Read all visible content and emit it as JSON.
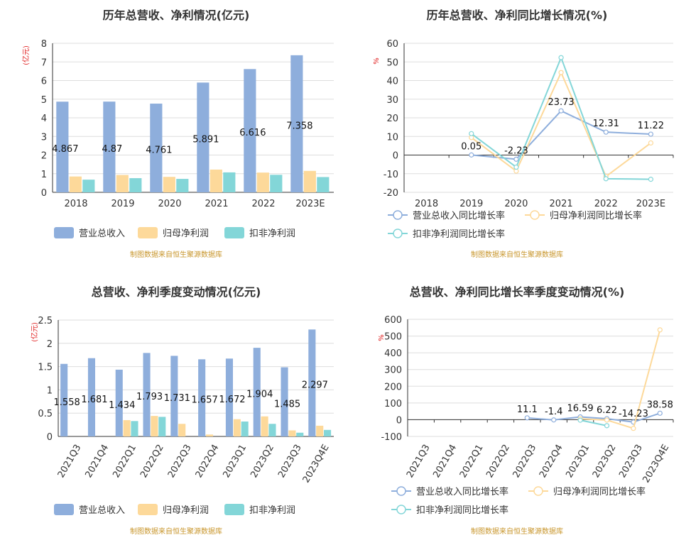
{
  "chart_data": [
    {
      "type": "bar",
      "title": "历年总营收、净利情况(亿元)",
      "ylabel": "(亿元)",
      "ylim": [
        0,
        8
      ],
      "yticks": [
        0,
        1,
        2,
        3,
        4,
        5,
        6,
        7,
        8
      ],
      "categories": [
        "2018",
        "2019",
        "2020",
        "2021",
        "2022",
        "2023E"
      ],
      "series": [
        {
          "name": "营业总收入",
          "values": [
            4.867,
            4.87,
            4.761,
            5.891,
            6.616,
            7.358
          ]
        },
        {
          "name": "归母净利润",
          "values": [
            0.85,
            0.93,
            0.83,
            1.22,
            1.06,
            1.15
          ]
        },
        {
          "name": "扣非净利润",
          "values": [
            0.68,
            0.76,
            0.72,
            1.07,
            0.94,
            0.82
          ]
        }
      ],
      "data_labels": [
        "4.867",
        "4.87",
        "4.761",
        "5.891",
        "6.616",
        "7.358"
      ],
      "source": "制图数据来自恒生聚源数据库"
    },
    {
      "type": "line",
      "title": "历年总营收、净利同比增长情况(%)",
      "ylabel": "%",
      "ylim": [
        -20,
        60
      ],
      "yticks": [
        -20,
        -10,
        0,
        10,
        20,
        30,
        40,
        50,
        60
      ],
      "categories": [
        "2018",
        "2019",
        "2020",
        "2021",
        "2022",
        "2023E"
      ],
      "series": [
        {
          "name": "营业总收入同比增长率",
          "values": [
            null,
            0.05,
            -2.23,
            23.73,
            12.31,
            11.22
          ]
        },
        {
          "name": "归母净利润同比增长率",
          "values": [
            null,
            9.4,
            -8.6,
            44.3,
            -11.5,
            6.5
          ]
        },
        {
          "name": "扣非净利润同比增长率",
          "values": [
            null,
            11.5,
            -6.5,
            52.3,
            -12.7,
            -13.0
          ]
        }
      ],
      "data_labels": [
        "",
        "0.05",
        "-2.23",
        "23.73",
        "12.31",
        "11.22"
      ],
      "source": "制图数据来自恒生聚源数据库"
    },
    {
      "type": "bar",
      "title": "总营收、净利季度变动情况(亿元)",
      "ylabel": "(亿元)",
      "ylim": [
        0,
        2.5
      ],
      "yticks": [
        0,
        0.5,
        1,
        1.5,
        2,
        2.5
      ],
      "ytick_labels": [
        "0",
        "0.5",
        "1",
        "1.5",
        "2",
        "2.5"
      ],
      "categories": [
        "2021Q3",
        "2021Q4",
        "2022Q1",
        "2022Q2",
        "2022Q3",
        "2022Q4",
        "2023Q1",
        "2023Q2",
        "2023Q3",
        "2023Q4E"
      ],
      "series": [
        {
          "name": "营业总收入",
          "values": [
            1.558,
            1.681,
            1.434,
            1.793,
            1.731,
            1.657,
            1.672,
            1.904,
            1.485,
            2.297
          ]
        },
        {
          "name": "归母净利润",
          "values": [
            null,
            null,
            0.35,
            0.44,
            0.27,
            0.04,
            0.37,
            0.43,
            0.13,
            0.23
          ]
        },
        {
          "name": "扣非净利润",
          "values": [
            null,
            null,
            0.33,
            0.42,
            null,
            null,
            0.32,
            0.27,
            0.08,
            0.14
          ]
        }
      ],
      "data_labels": [
        "1.558",
        "1.681",
        "1.434",
        "1.793",
        "1.731",
        "1.657",
        "1.672",
        "1.904",
        "1.485",
        "2.297"
      ],
      "source": "制图数据来自恒生聚源数据库"
    },
    {
      "type": "line",
      "title": "总营收、净利同比增长率季度变动情况(%)",
      "ylabel": "%",
      "ylim": [
        -100,
        600
      ],
      "yticks": [
        -100,
        0,
        100,
        200,
        300,
        400,
        500,
        600
      ],
      "categories": [
        "2021Q3",
        "2021Q4",
        "2022Q1",
        "2022Q2",
        "2022Q3",
        "2022Q4",
        "2023Q1",
        "2023Q2",
        "2023Q3",
        "2023Q4E"
      ],
      "series": [
        {
          "name": "营业总收入同比增长率",
          "values": [
            null,
            null,
            null,
            null,
            11.1,
            -1.4,
            16.59,
            6.22,
            -14.23,
            38.58
          ]
        },
        {
          "name": "归母净利润同比增长率",
          "values": [
            null,
            null,
            null,
            null,
            null,
            null,
            5.7,
            -2.3,
            -51.9,
            537.0
          ]
        },
        {
          "name": "扣非净利润同比增长率",
          "values": [
            null,
            null,
            null,
            null,
            null,
            null,
            -3.0,
            -35.7,
            null,
            null
          ]
        }
      ],
      "data_labels": [
        "",
        "",
        "",
        "",
        "11.1",
        "-1.4",
        "16.59",
        "6.22",
        "-14.23",
        "38.58"
      ],
      "source": "制图数据来自恒生聚源数据库"
    }
  ],
  "colors": {
    "series": [
      "#8eaedc",
      "#fdd99a",
      "#83d6d8"
    ],
    "axis": "#333333",
    "grid": "#dddddd"
  }
}
